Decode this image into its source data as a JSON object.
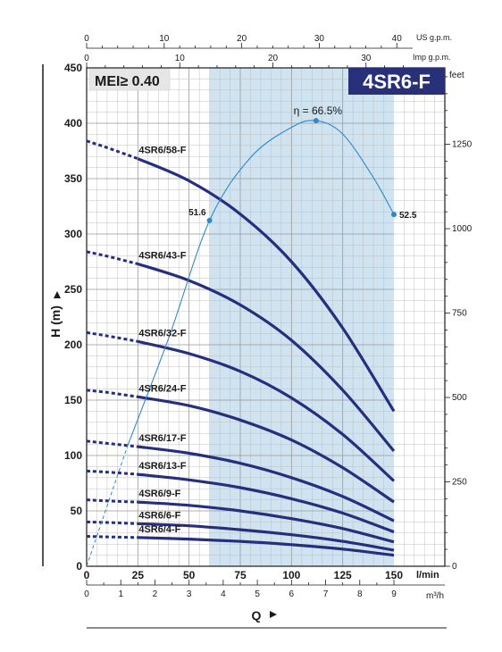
{
  "chart_data": {
    "type": "line",
    "title": "4SR6-F",
    "mei_label": "MEI≥ 0.40",
    "y_label": "H (m)",
    "x_label": "Q",
    "x_unit_lmin": "l/min",
    "x_unit_m3h": "m³/h",
    "top_units": [
      "US g.p.m.",
      "Imp g.p.m."
    ],
    "right_unit": "feet",
    "xlim_lmin": [
      0,
      150
    ],
    "ylim_m": [
      0,
      450
    ],
    "x_ticks_lmin": [
      0,
      25,
      50,
      75,
      100,
      125,
      150
    ],
    "y_ticks_m": [
      0,
      50,
      100,
      150,
      200,
      250,
      300,
      350,
      400,
      450
    ],
    "x_ticks_m3h": [
      0,
      1,
      2,
      3,
      4,
      5,
      6,
      7,
      8,
      9
    ],
    "us_gpm_ticks": [
      0,
      10,
      20,
      30,
      40
    ],
    "imp_gpm_ticks": [
      0,
      10,
      20,
      30
    ],
    "feet_ticks": [
      0,
      250,
      500,
      750,
      1000,
      1250
    ],
    "recommended_range_lmin": [
      60,
      150
    ],
    "series": [
      {
        "name": "4SR6/58-F",
        "x": [
          0,
          10,
          25,
          50,
          75,
          100,
          125,
          150
        ],
        "y": [
          384,
          378,
          368,
          348,
          318,
          275,
          215,
          140
        ]
      },
      {
        "name": "4SR6/43-F",
        "x": [
          0,
          10,
          25,
          50,
          75,
          100,
          125,
          150
        ],
        "y": [
          284,
          280,
          273,
          258,
          236,
          204,
          159,
          104
        ]
      },
      {
        "name": "4SR6/32-F",
        "x": [
          0,
          10,
          25,
          50,
          75,
          100,
          125,
          150
        ],
        "y": [
          211,
          208,
          203,
          192,
          176,
          152,
          119,
          77
        ]
      },
      {
        "name": "4SR6/24-F",
        "x": [
          0,
          10,
          25,
          50,
          75,
          100,
          125,
          150
        ],
        "y": [
          159,
          157,
          153,
          145,
          132,
          114,
          89,
          58
        ]
      },
      {
        "name": "4SR6/17-F",
        "x": [
          0,
          10,
          25,
          50,
          75,
          100,
          125,
          150
        ],
        "y": [
          113,
          111,
          108,
          102,
          93,
          80,
          63,
          41
        ]
      },
      {
        "name": "4SR6/13-F",
        "x": [
          0,
          10,
          25,
          50,
          75,
          100,
          125,
          150
        ],
        "y": [
          86,
          85,
          83,
          78,
          71,
          61,
          48,
          31
        ]
      },
      {
        "name": "4SR6/9-F",
        "x": [
          0,
          10,
          25,
          50,
          75,
          100,
          125,
          150
        ],
        "y": [
          60,
          59,
          58,
          55,
          50,
          43,
          34,
          22
        ]
      },
      {
        "name": "4SR6/6-F",
        "x": [
          0,
          10,
          25,
          50,
          75,
          100,
          125,
          150
        ],
        "y": [
          40,
          39.5,
          38.5,
          36.5,
          33,
          28.5,
          22.5,
          14.5
        ]
      },
      {
        "name": "4SR6/4-F",
        "x": [
          0,
          10,
          25,
          50,
          75,
          100,
          125,
          150
        ],
        "y": [
          27,
          26.5,
          26,
          24.5,
          22.5,
          19.5,
          15.5,
          10
        ]
      }
    ],
    "efficiency_curve": {
      "x_lmin": [
        0,
        20,
        40,
        60,
        80,
        100,
        112,
        125,
        140,
        150
      ],
      "y_pct": [
        0,
        18,
        34,
        51.6,
        61,
        65.5,
        66.5,
        64.5,
        58,
        52.5
      ],
      "y_scale_m_per_pct": 6.05
    },
    "efficiency_labels": [
      {
        "text": "51.6",
        "x_lmin": 60,
        "pct": 51.6
      },
      {
        "text": "η = 66.5%",
        "x_lmin": 112,
        "pct": 66.5
      },
      {
        "text": "52.5",
        "x_lmin": 150,
        "pct": 52.5
      }
    ]
  }
}
